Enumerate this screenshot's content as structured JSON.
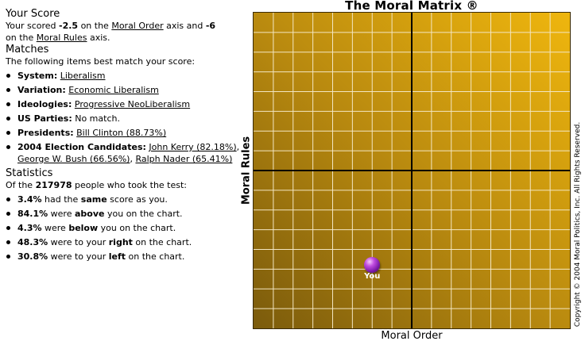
{
  "score": {
    "heading": "Your Score",
    "line_a": "Your scored ",
    "order_value": "-2.5",
    "line_b": " on the ",
    "order_link": "Moral Order",
    "line_c": " axis and ",
    "rules_value": "-6",
    "line_d": "on the ",
    "rules_link": "Moral Rules",
    "line_e": " axis."
  },
  "matches": {
    "heading": "Matches",
    "intro": "The following items best match your score:",
    "system_label": "System:",
    "system_value": "Liberalism",
    "variation_label": "Variation:",
    "variation_value": "Economic Liberalism",
    "ideologies_label": "Ideologies:",
    "ideologies_value": "Progressive NeoLiberalism",
    "parties_label": "US Parties:",
    "parties_value": " No match.",
    "presidents_label": "Presidents:",
    "presidents_value": "Bill Clinton (88.73%)",
    "candidates_label": "2004 Election Candidates:",
    "candidate_1": "John Kerry (82.18%)",
    "candidate_2": "George W. Bush (66.56%)",
    "candidate_3": "Ralph Nader (65.41%)"
  },
  "statistics": {
    "heading": "Statistics",
    "intro_a": "Of the ",
    "count": "217978",
    "intro_b": " people who took the test:",
    "same_pct": "3.4%",
    "same_a": " had the ",
    "same_b": "same",
    "same_c": " score as you.",
    "above_pct": "84.1%",
    "above_a": " were ",
    "above_b": "above",
    "above_c": " you on the chart.",
    "below_pct": "4.3%",
    "below_a": " were ",
    "below_b": "below",
    "below_c": " you on the chart.",
    "right_pct": "48.3%",
    "right_a": " were to your ",
    "right_b": "right",
    "right_c": " on the chart.",
    "left_pct": "30.8%",
    "left_a": " were to your ",
    "left_b": "left",
    "left_c": " on the chart."
  },
  "chart_data": {
    "type": "scatter",
    "title": "The Moral Matrix ®",
    "xlabel": "Moral Order",
    "ylabel": "Moral Rules",
    "xlim": [
      -10,
      10
    ],
    "ylim": [
      -10,
      10
    ],
    "grid": true,
    "points": [
      {
        "x": -2.5,
        "y": -6,
        "label": "You"
      }
    ],
    "colors": {
      "background_dark": "#7b5b0c",
      "background_light": "#efb60e",
      "marker": "#a030c8"
    }
  },
  "copyright": "Copyright © 2004 Moral Politics, Inc. All Rights Reserved."
}
